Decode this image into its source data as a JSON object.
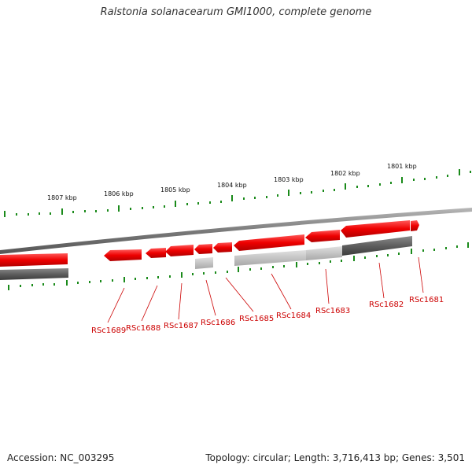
{
  "title": "Ralstonia solanacearum GMI1000, complete genome",
  "accession": "Accession: NC_003295",
  "topology": "Topology: circular; Length: 3,716,413 bp; Genes: 3,501",
  "colors": {
    "tick": "#1a8a1a",
    "gene_forward": "#ee0000",
    "label": "#cc0000",
    "backbone": "#888888"
  },
  "kbp_labels": [
    "1807 kbp",
    "1806 kbp",
    "1805 kbp",
    "1804 kbp",
    "1803 kbp",
    "1802 kbp",
    "1801 kbp"
  ],
  "gene_labels": [
    "RSc1689",
    "RSc1688",
    "RSc1687",
    "RSc1686",
    "RSc1685",
    "RSc1684",
    "RSc1683",
    "RSc1682",
    "RSc1681"
  ]
}
